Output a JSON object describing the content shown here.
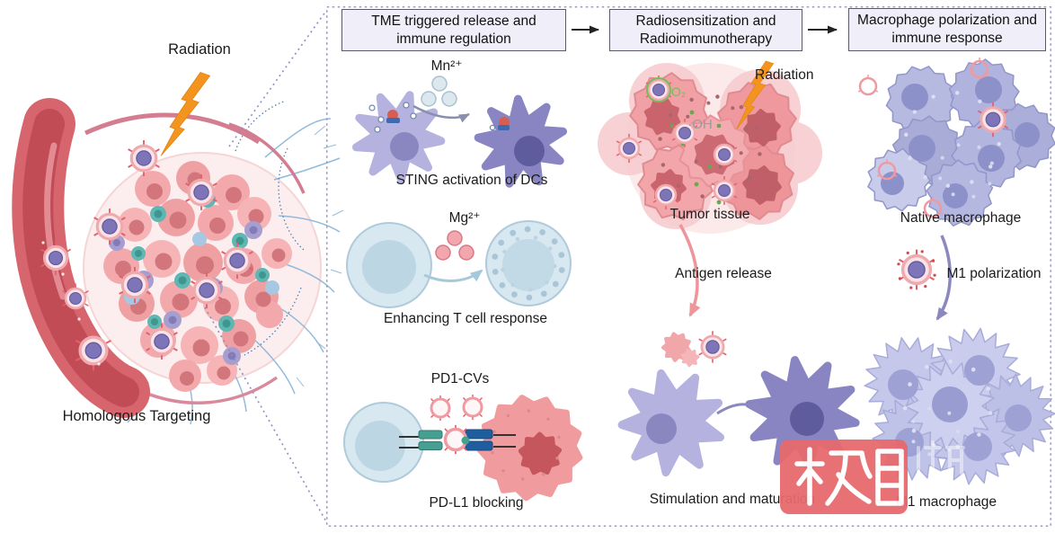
{
  "figure": {
    "left": {
      "radiation": "Radiation",
      "caption": "Homologous Targeting"
    },
    "steps": [
      {
        "title": "TME triggered release and immune regulation"
      },
      {
        "title": "Radiosensitization and Radioimmunotherapy"
      },
      {
        "title": "Macrophage polarization and immune response"
      }
    ],
    "tme": {
      "mn": "Mn²⁺",
      "sting_caption": "STING activation of DCs",
      "mg": "Mg²⁺",
      "tcell_caption": "Enhancing T cell response",
      "pd1": "PD1-CVs",
      "pdl1_caption": "PD-L1 blocking"
    },
    "radio": {
      "radiation": "Radiation",
      "o2": "O₂",
      "oh": "·OH",
      "tumor_caption": "Tumor tissue",
      "antigen": "Antigen release",
      "maturation_caption": "Stimulation and maturation"
    },
    "macro": {
      "native_caption": "Native macrophage",
      "m1_polarization": "M1 polarization",
      "m1_caption": "M1 macrophage"
    }
  },
  "watermark": {
    "text": "极目",
    "ghost_text": "新闻",
    "color": "#e66a6d"
  },
  "icons": {
    "radiation": "lightning-bolt-icon",
    "flow": "flow-arrow-icon",
    "ions": "ion-circles-icon",
    "vesicle": "cell-vesicle-icon"
  },
  "colors": {
    "accent_orange": "#f2941d",
    "watermark_red": "#e66a6d",
    "step_box_bg": "#f0eef8",
    "dashed_border": "#989bcb",
    "o2_green": "#7cb95c",
    "oh_gray": "#9b9b9b"
  }
}
